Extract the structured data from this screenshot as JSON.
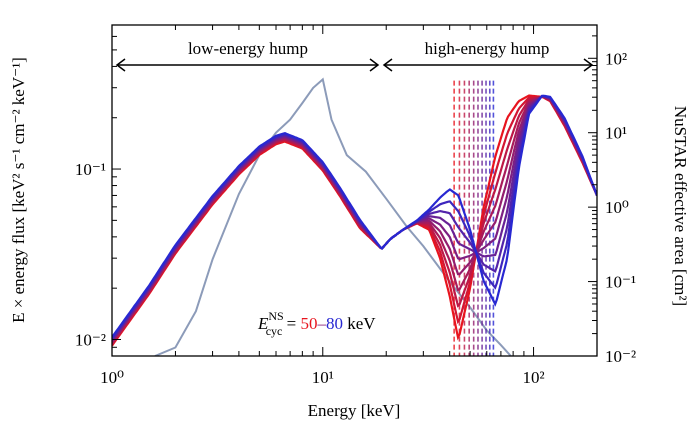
{
  "chart_data": {
    "type": "line",
    "xlabel": "Energy [keV]",
    "ylabel": "E × energy flux [keV² s⁻¹ cm⁻² keV⁻¹]",
    "y2label": "NuSTAR effective area [cm²]",
    "x_scale": "log",
    "y_scale": "log",
    "y2_scale": "log",
    "xlim": [
      1,
      200
    ],
    "ylim": [
      0.008,
      0.7
    ],
    "y2lim": [
      0.01,
      280
    ],
    "x_tick_labels": [
      "10⁰",
      "10¹",
      "10²"
    ],
    "y_tick_labels": [
      "10⁻²",
      "10⁻¹"
    ],
    "y2_tick_labels": [
      "10⁻²",
      "10⁻¹",
      "10⁰",
      "10¹",
      "10²"
    ],
    "annotations": {
      "low_hump": "low-energy hump",
      "high_hump": "high-energy hump",
      "ecyc_symbol": "E",
      "ecyc_super": "NS",
      "ecyc_sub": "cyc",
      "ecyc_eq": " = ",
      "ecyc_low": "50",
      "ecyc_dash": "–",
      "ecyc_high": "80",
      "ecyc_unit": " keV"
    },
    "colors": {
      "low_cyc": "#e8141e",
      "high_cyc": "#2828d2",
      "effective_area": "#8c9bb9"
    },
    "cyclotron_lines_keV": [
      42,
      44.5,
      47,
      49.5,
      52,
      54.5,
      57,
      59.5,
      62,
      64.5
    ],
    "series_low_energy": {
      "x": [
        1,
        1.5,
        2,
        3,
        4,
        5,
        6,
        6.6,
        8,
        10,
        12,
        15,
        19
      ],
      "y": [
        0.0092,
        0.0185,
        0.032,
        0.062,
        0.093,
        0.121,
        0.14,
        0.145,
        0.132,
        0.098,
        0.07,
        0.045,
        0.0342
      ]
    },
    "series_cyclotron_50": {
      "x": [
        19,
        21,
        24,
        28,
        32,
        36,
        40,
        44,
        50,
        58,
        66,
        75,
        85,
        95,
        110,
        120,
        140,
        170,
        200
      ],
      "y": [
        0.034,
        0.039,
        0.044,
        0.048,
        0.044,
        0.03,
        0.018,
        0.01,
        0.02,
        0.06,
        0.12,
        0.2,
        0.25,
        0.27,
        0.265,
        0.25,
        0.18,
        0.11,
        0.07
      ]
    },
    "series_cyclotron_80": {
      "x": [
        19,
        21,
        24,
        28,
        32,
        36,
        40,
        44,
        50,
        58,
        66,
        75,
        85,
        95,
        110,
        120,
        140,
        170,
        200
      ],
      "y": [
        0.034,
        0.039,
        0.044,
        0.05,
        0.058,
        0.068,
        0.076,
        0.07,
        0.044,
        0.022,
        0.016,
        0.03,
        0.1,
        0.21,
        0.27,
        0.265,
        0.2,
        0.12,
        0.07
      ]
    },
    "series_effective_area": {
      "x": [
        1.6,
        2,
        2.5,
        3,
        4,
        5,
        6,
        7,
        8,
        9,
        10,
        11,
        13,
        16,
        20,
        25,
        30,
        40,
        50,
        60,
        70,
        78
      ],
      "y": [
        0.01,
        0.013,
        0.04,
        0.2,
        1.5,
        5,
        10,
        15,
        25,
        40,
        52,
        15,
        5,
        3,
        1.3,
        0.55,
        0.3,
        0.1,
        0.045,
        0.022,
        0.014,
        0.01
      ]
    }
  }
}
